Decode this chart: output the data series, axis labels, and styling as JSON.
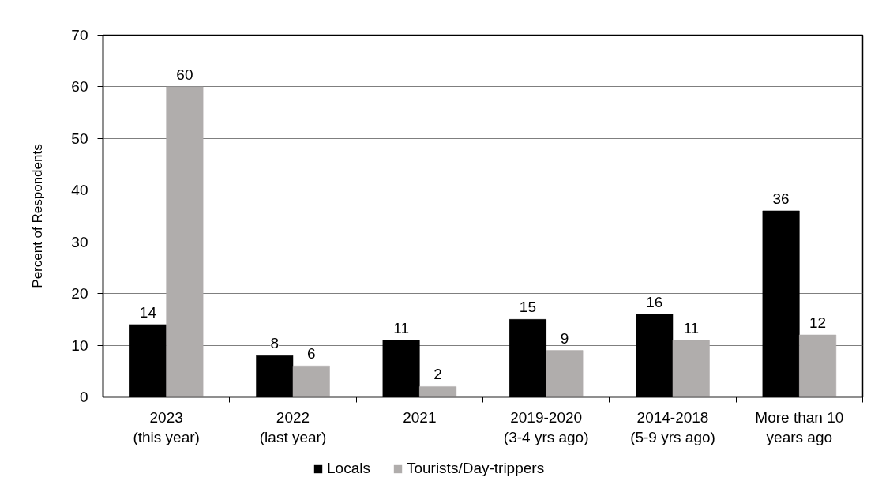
{
  "chart_data": {
    "type": "bar",
    "ylabel": "Percent of Respondents",
    "categories": [
      "2023\n(this year)",
      "2022\n(last year)",
      "2021",
      "2019-2020\n(3-4 yrs ago)",
      "2014-2018\n(5-9 yrs ago)",
      "More than 10\nyears ago"
    ],
    "series": [
      {
        "name": "Locals",
        "color": "#000000",
        "values": [
          14,
          8,
          11,
          15,
          16,
          36
        ]
      },
      {
        "name": "Tourists/Day-trippers",
        "color": "#b0adac",
        "values": [
          60,
          6,
          2,
          9,
          11,
          12
        ]
      }
    ],
    "ylim": [
      0,
      70
    ],
    "yticks": [
      0,
      10,
      20,
      30,
      40,
      50,
      60,
      70
    ],
    "grid": "y",
    "legend": "bottom",
    "data_labels": true
  }
}
